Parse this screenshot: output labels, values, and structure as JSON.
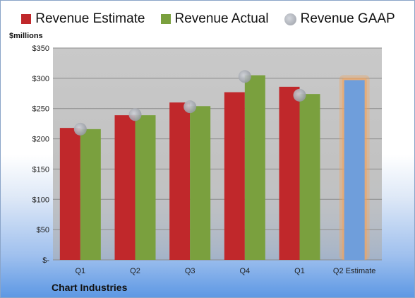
{
  "chart_data": {
    "type": "bar",
    "categories": [
      "Q1",
      "Q2",
      "Q3",
      "Q4",
      "Q1",
      "Q2 Estimate"
    ],
    "series": [
      {
        "name": "Revenue Estimate",
        "color": "#c0282b",
        "values": [
          218,
          239,
          260,
          277,
          286,
          null
        ]
      },
      {
        "name": "Revenue Actual",
        "color": "#7aa03e",
        "values": [
          216,
          239,
          254,
          305,
          274,
          297
        ]
      },
      {
        "name": "Revenue GAAP",
        "color": "#a8acb4",
        "type": "scatter",
        "values": [
          216,
          240,
          253,
          303,
          272,
          null
        ]
      }
    ],
    "highlight": {
      "category_index": 5,
      "color": "#6f9edb",
      "glow": "#f4a25a"
    },
    "ylabel": "$millions",
    "ylim": [
      0,
      350
    ],
    "yticks": [
      0,
      50,
      100,
      150,
      200,
      250,
      300,
      350
    ],
    "ytick_labels": [
      "$-",
      "$50",
      "$100",
      "$150",
      "$200",
      "$250",
      "$300",
      "$350"
    ],
    "grid": true,
    "legend_position": "top",
    "footer": "Chart Industries"
  }
}
